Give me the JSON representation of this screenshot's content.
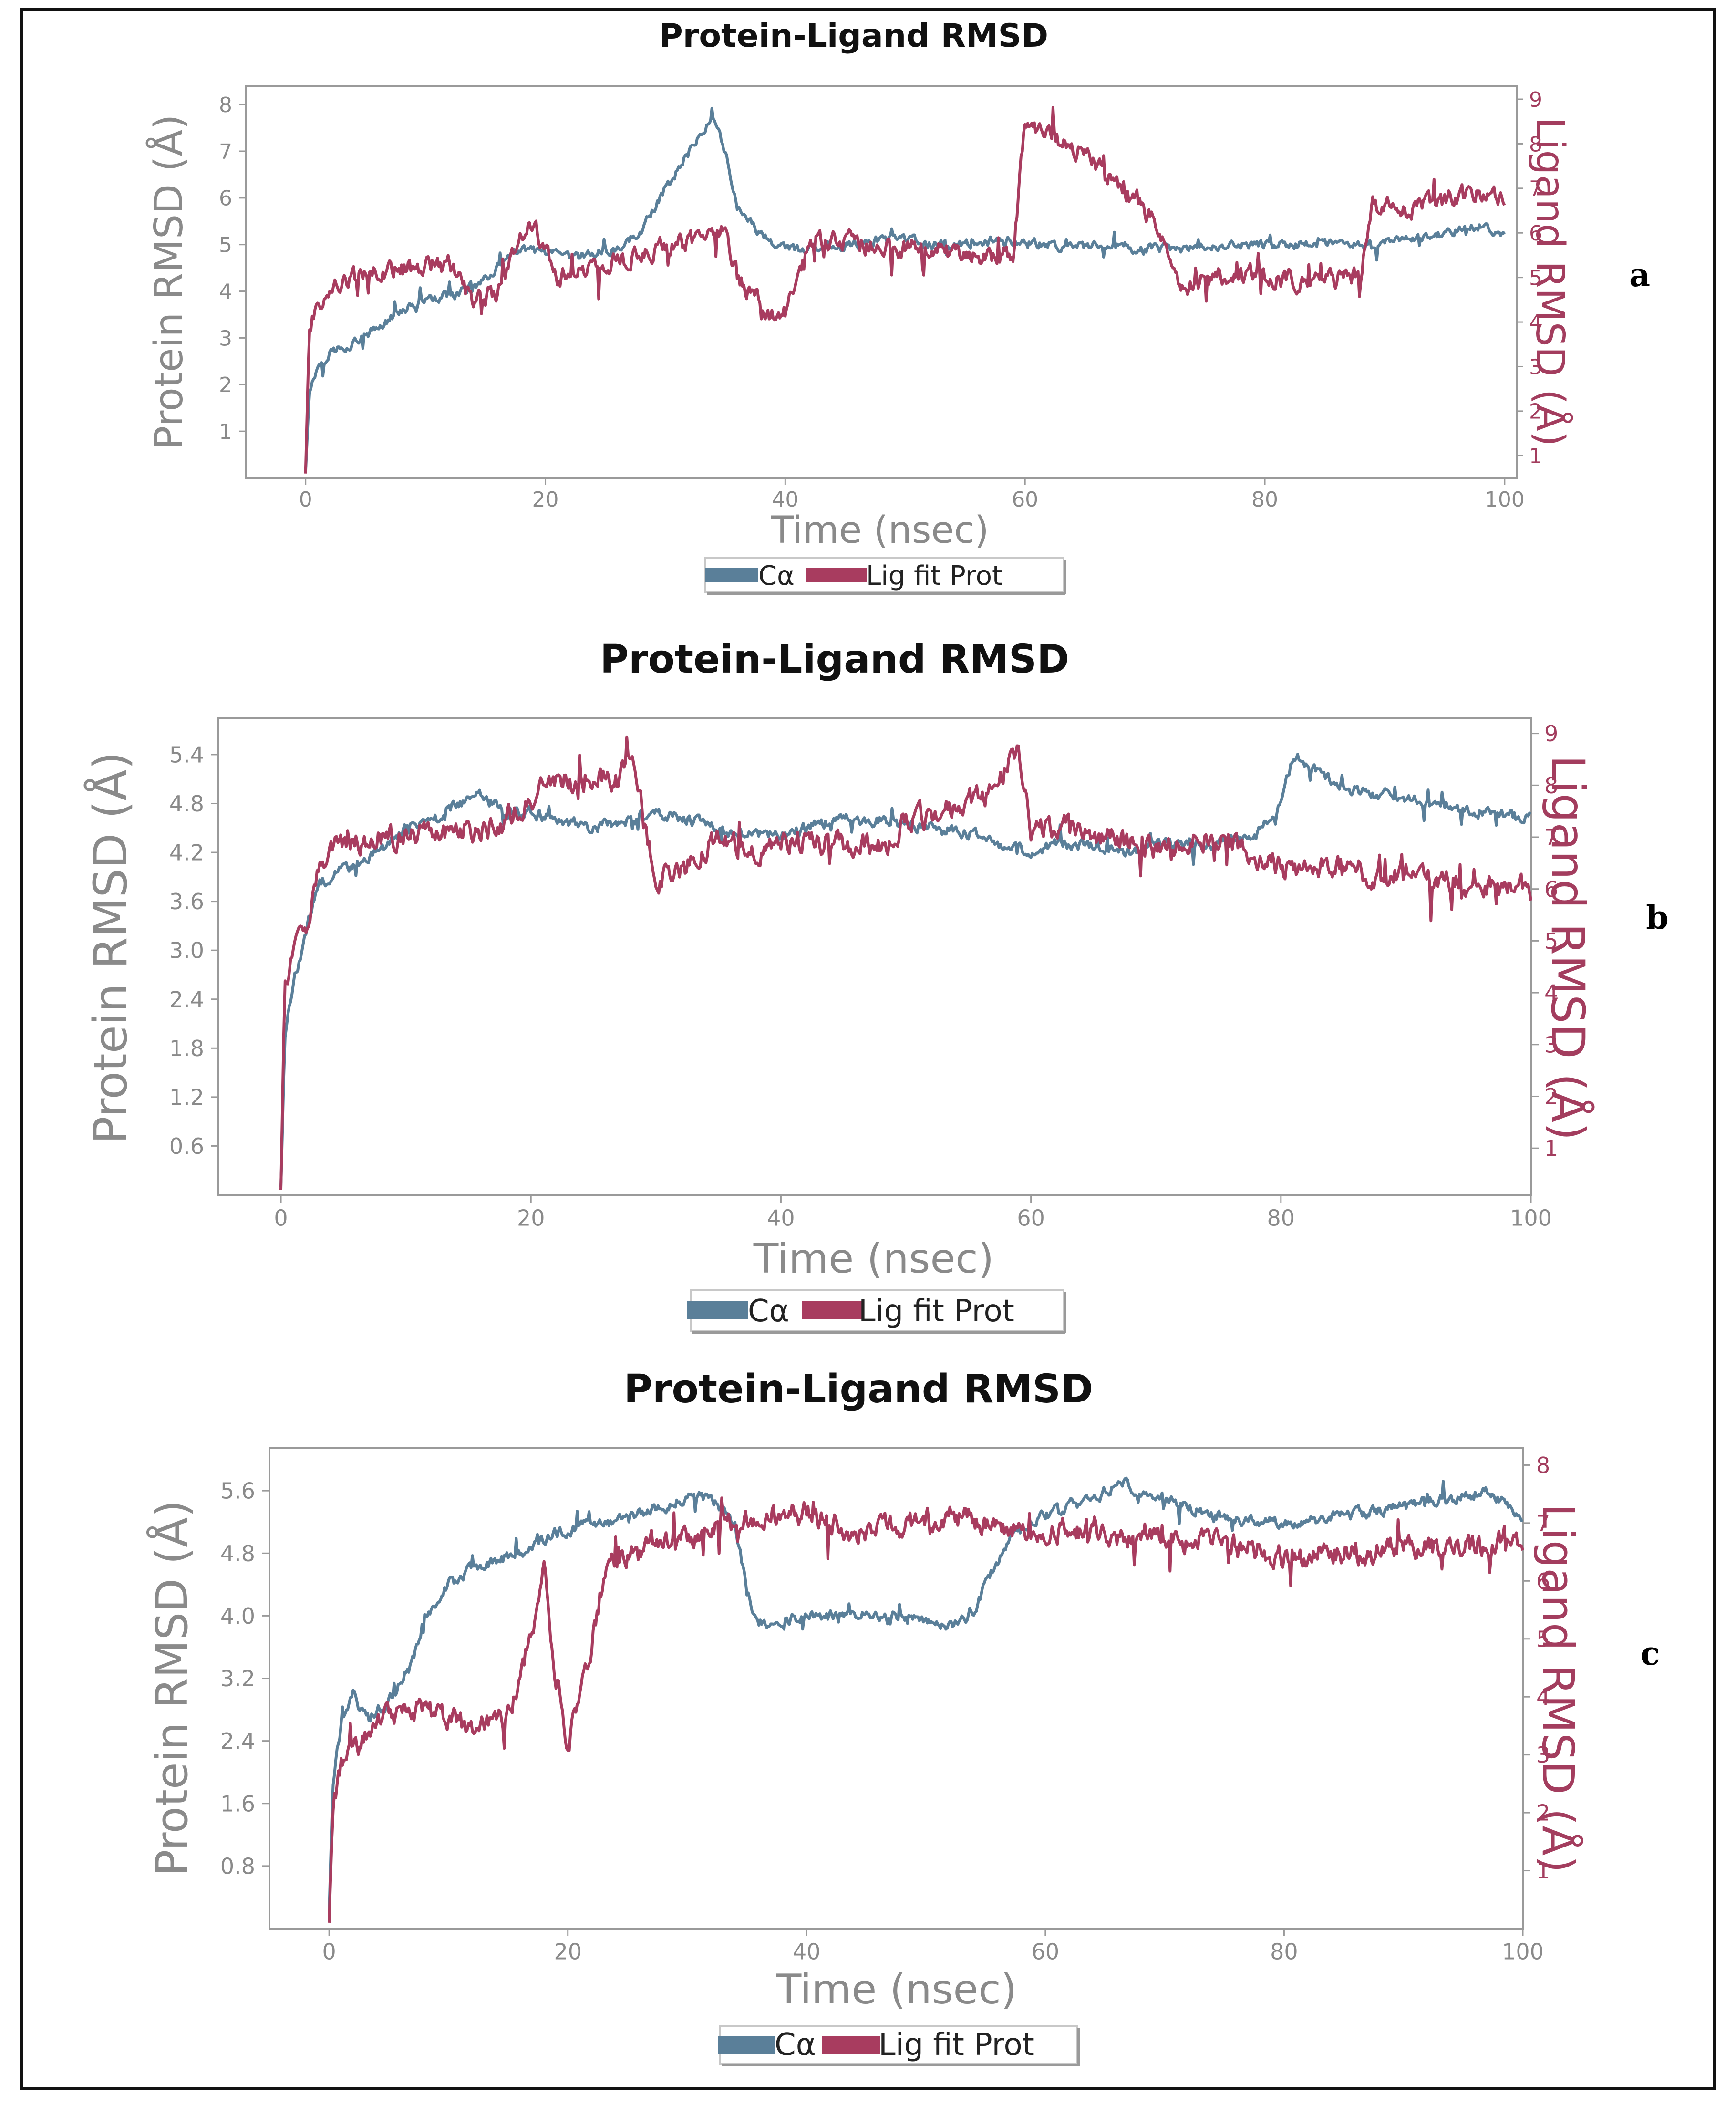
{
  "chart_data": [
    {
      "type": "line",
      "panel_label": "a",
      "title": "Protein-Ligand RMSD",
      "xlabel": "Time (nsec)",
      "ylabel": "Protein RMSD (Å)",
      "y2label": "Ligand RMSD (Å)",
      "xlim": [
        -5,
        101
      ],
      "ylim": [
        0,
        8.4
      ],
      "y2lim": [
        0.5,
        9.3
      ],
      "xticks": [
        "0",
        "20",
        "40",
        "60",
        "80",
        "100"
      ],
      "yticks": [
        "1",
        "2",
        "3",
        "4",
        "5",
        "6",
        "7",
        "8"
      ],
      "y2ticks": [
        "1",
        "2",
        "3",
        "4",
        "5",
        "6",
        "7",
        "8",
        "9"
      ],
      "legend": [
        "Cα",
        "Lig fit Prot"
      ],
      "series": [
        {
          "name": "Cα",
          "axis": "left",
          "color": "#5a7f99",
          "x": [
            0,
            0.3,
            1,
            2,
            4,
            6,
            8,
            10,
            12,
            14,
            16,
            18,
            20,
            22,
            24,
            26,
            28,
            30,
            32,
            33,
            34,
            35,
            36,
            38,
            40,
            42,
            44,
            46,
            48,
            50,
            52,
            55,
            58,
            60,
            62,
            65,
            68,
            70,
            73,
            76,
            80,
            84,
            88,
            92,
            96,
            98,
            100
          ],
          "values": [
            0.1,
            1.8,
            2.4,
            2.7,
            2.9,
            3.2,
            3.6,
            3.8,
            3.9,
            4.1,
            4.5,
            4.9,
            4.8,
            4.7,
            4.8,
            4.9,
            5.3,
            6.2,
            7.0,
            7.4,
            7.8,
            7.0,
            5.8,
            5.2,
            4.9,
            4.9,
            5.0,
            5.0,
            5.1,
            5.1,
            5.0,
            5.0,
            5.1,
            5.0,
            5.0,
            4.95,
            4.95,
            4.9,
            4.9,
            4.95,
            5.0,
            5.0,
            5.0,
            5.1,
            5.3,
            5.4,
            5.2
          ]
        },
        {
          "name": "Lig fit Prot",
          "axis": "right",
          "color": "#a83c5f",
          "x": [
            0,
            0.3,
            1,
            3,
            6,
            9,
            12,
            14,
            16,
            18,
            19,
            21,
            24,
            28,
            32,
            35,
            36,
            38,
            39,
            40,
            42,
            45,
            48,
            52,
            55,
            59,
            60,
            62,
            65,
            68,
            71,
            73,
            76,
            80,
            84,
            88,
            89,
            92,
            96,
            100
          ],
          "values": [
            0.6,
            3.8,
            4.4,
            4.9,
            5.1,
            5.2,
            5.3,
            4.4,
            4.7,
            6.0,
            6.2,
            5.0,
            5.2,
            5.5,
            5.8,
            6.0,
            5.0,
            4.4,
            4.1,
            4.2,
            5.8,
            5.9,
            5.6,
            5.7,
            5.4,
            5.5,
            8.4,
            8.1,
            7.8,
            7.0,
            6.2,
            4.6,
            5.1,
            5.0,
            4.9,
            5.0,
            6.6,
            6.5,
            6.8,
            6.9
          ]
        }
      ]
    },
    {
      "type": "line",
      "panel_label": "b",
      "title": "Protein-Ligand RMSD",
      "xlabel": "Time (nsec)",
      "ylabel": "Protein RMSD (Å)",
      "y2label": "Ligand RMSD (Å)",
      "xlim": [
        -5,
        100
      ],
      "ylim": [
        0,
        5.85
      ],
      "y2lim": [
        0.1,
        9.3
      ],
      "xticks": [
        "0",
        "20",
        "40",
        "60",
        "80",
        "100"
      ],
      "yticks": [
        "0.6",
        "1.2",
        "1.8",
        "2.4",
        "3.0",
        "3.6",
        "4.2",
        "4.8",
        "5.4"
      ],
      "y2ticks": [
        "1",
        "2",
        "3",
        "4",
        "5",
        "6",
        "7",
        "8",
        "9"
      ],
      "legend": [
        "Cα",
        "Lig fit Prot"
      ],
      "series": [
        {
          "name": "Cα",
          "axis": "left",
          "color": "#5a7f99",
          "x": [
            0,
            0.3,
            1,
            2,
            3,
            5,
            8,
            10,
            12,
            14,
            16,
            18,
            20,
            22,
            25,
            28,
            30,
            33,
            36,
            40,
            44,
            48,
            52,
            56,
            58,
            60,
            62,
            65,
            68,
            70,
            74,
            78,
            80,
            81,
            82,
            85,
            88,
            92,
            96,
            100
          ],
          "values": [
            0.1,
            1.9,
            2.6,
            3.2,
            3.8,
            4.0,
            4.2,
            4.5,
            4.6,
            4.8,
            4.9,
            4.7,
            4.7,
            4.6,
            4.5,
            4.6,
            4.7,
            4.6,
            4.4,
            4.4,
            4.6,
            4.6,
            4.5,
            4.4,
            4.3,
            4.2,
            4.3,
            4.3,
            4.2,
            4.3,
            4.3,
            4.4,
            4.8,
            5.4,
            5.3,
            5.0,
            4.9,
            4.8,
            4.7,
            4.6
          ]
        },
        {
          "name": "Lig fit Prot",
          "axis": "right",
          "color": "#a83c5f",
          "x": [
            0,
            0.3,
            1,
            2,
            3,
            5,
            8,
            10,
            14,
            18,
            21,
            24,
            27,
            28,
            30,
            32,
            35,
            38,
            40,
            44,
            48,
            50,
            53,
            57,
            59,
            60,
            62,
            66,
            70,
            74,
            77,
            80,
            84,
            88,
            90,
            95,
            100
          ],
          "values": [
            0.2,
            4.2,
            4.8,
            5.2,
            6.5,
            6.9,
            7.0,
            7.0,
            7.1,
            7.3,
            7.9,
            8.2,
            8.1,
            8.6,
            6.2,
            6.3,
            7.0,
            6.6,
            6.9,
            6.9,
            6.8,
            7.3,
            7.5,
            7.9,
            8.8,
            7.2,
            7.2,
            7.0,
            6.8,
            7.0,
            6.8,
            6.4,
            6.5,
            6.2,
            6.3,
            6.1,
            6.0
          ]
        }
      ]
    },
    {
      "type": "line",
      "panel_label": "c",
      "title": "Protein-Ligand RMSD",
      "xlabel": "Time (nsec)",
      "ylabel": "Protein RMSD (Å)",
      "y2label": "Ligand RMSD (Å)",
      "xlim": [
        -5,
        100
      ],
      "ylim": [
        0,
        6.15
      ],
      "y2lim": [
        0.0,
        8.3
      ],
      "xticks": [
        "0",
        "20",
        "40",
        "60",
        "80",
        "100"
      ],
      "yticks": [
        "0.8",
        "1.6",
        "2.4",
        "3.2",
        "4.0",
        "4.8",
        "5.6"
      ],
      "y2ticks": [
        "1",
        "2",
        "3",
        "4",
        "5",
        "6",
        "7",
        "8"
      ],
      "legend": [
        "Cα",
        "Lig fit Prot"
      ],
      "series": [
        {
          "name": "Cα",
          "axis": "left",
          "color": "#5a7f99",
          "x": [
            0,
            0.3,
            1,
            2,
            3,
            5,
            7,
            8,
            10,
            12,
            14,
            16,
            18,
            20,
            22,
            24,
            26,
            28,
            30,
            32,
            34,
            35,
            36,
            40,
            44,
            48,
            52,
            54,
            55,
            57,
            60,
            64,
            66,
            70,
            74,
            78,
            82,
            86,
            90,
            94,
            97,
            100
          ],
          "values": [
            0.2,
            1.8,
            2.6,
            3.0,
            2.7,
            2.9,
            3.4,
            4.0,
            4.4,
            4.6,
            4.7,
            4.8,
            5.0,
            5.1,
            5.2,
            5.2,
            5.3,
            5.4,
            5.5,
            5.5,
            5.2,
            4.3,
            3.9,
            4.0,
            4.0,
            4.0,
            3.9,
            4.0,
            4.4,
            5.0,
            5.3,
            5.5,
            5.7,
            5.5,
            5.3,
            5.2,
            5.2,
            5.3,
            5.4,
            5.5,
            5.6,
            5.3
          ]
        },
        {
          "name": "Lig fit Prot",
          "axis": "right",
          "color": "#a83c5f",
          "x": [
            0,
            0.3,
            1,
            3,
            5,
            8,
            10,
            12,
            14,
            15,
            17,
            18,
            19,
            20,
            21,
            22,
            23,
            25,
            28,
            32,
            36,
            40,
            44,
            48,
            52,
            56,
            60,
            64,
            68,
            72,
            76,
            80,
            84,
            88,
            92,
            96,
            100
          ],
          "values": [
            0.1,
            2.0,
            2.8,
            3.3,
            3.7,
            3.8,
            3.6,
            3.5,
            3.5,
            3.7,
            5.1,
            6.1,
            4.4,
            3.2,
            4.0,
            4.9,
            6.1,
            6.5,
            6.6,
            7.0,
            7.1,
            7.2,
            6.8,
            7.0,
            7.1,
            7.0,
            6.9,
            6.8,
            6.7,
            6.7,
            6.6,
            6.4,
            6.5,
            6.5,
            6.6,
            6.6,
            6.7
          ]
        }
      ]
    }
  ]
}
